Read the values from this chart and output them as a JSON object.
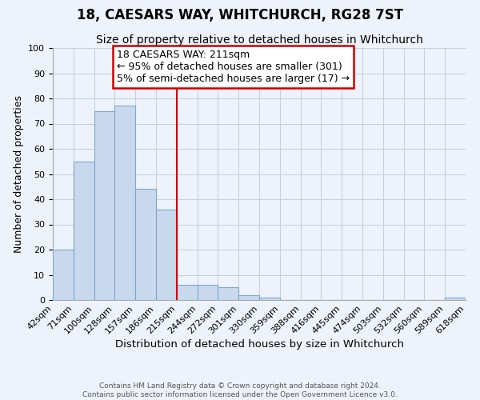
{
  "title": "18, CAESARS WAY, WHITCHURCH, RG28 7ST",
  "subtitle": "Size of property relative to detached houses in Whitchurch",
  "xlabel": "Distribution of detached houses by size in Whitchurch",
  "ylabel": "Number of detached properties",
  "bar_edges": [
    42,
    71,
    100,
    128,
    157,
    186,
    215,
    244,
    272,
    301,
    330,
    359,
    388,
    416,
    445,
    474,
    503,
    532,
    560,
    589,
    618
  ],
  "bar_heights": [
    20,
    55,
    75,
    77,
    44,
    36,
    6,
    6,
    5,
    2,
    1,
    0,
    0,
    0,
    0,
    0,
    0,
    0,
    0,
    1,
    0
  ],
  "bar_color": "#c9d9ed",
  "bar_edgecolor": "#7aa8cc",
  "vline_x": 215,
  "vline_color": "#cc0000",
  "ylim": [
    0,
    100
  ],
  "yticks": [
    0,
    10,
    20,
    30,
    40,
    50,
    60,
    70,
    80,
    90,
    100
  ],
  "annotation_line1": "18 CAESARS WAY: 211sqm",
  "annotation_line2": "← 95% of detached houses are smaller (301)",
  "annotation_line3": "5% of semi-detached houses are larger (17) →",
  "footer_line1": "Contains HM Land Registry data © Crown copyright and database right 2024.",
  "footer_line2": "Contains public sector information licensed under the Open Government Licence v3.0.",
  "title_fontsize": 12,
  "subtitle_fontsize": 10,
  "xlabel_fontsize": 9.5,
  "ylabel_fontsize": 9,
  "tick_fontsize": 8,
  "annotation_fontsize": 9,
  "footer_fontsize": 6.5,
  "background_color": "#eef2fa",
  "grid_color": "#c8d0e0",
  "spine_color": "#aaaaaa"
}
